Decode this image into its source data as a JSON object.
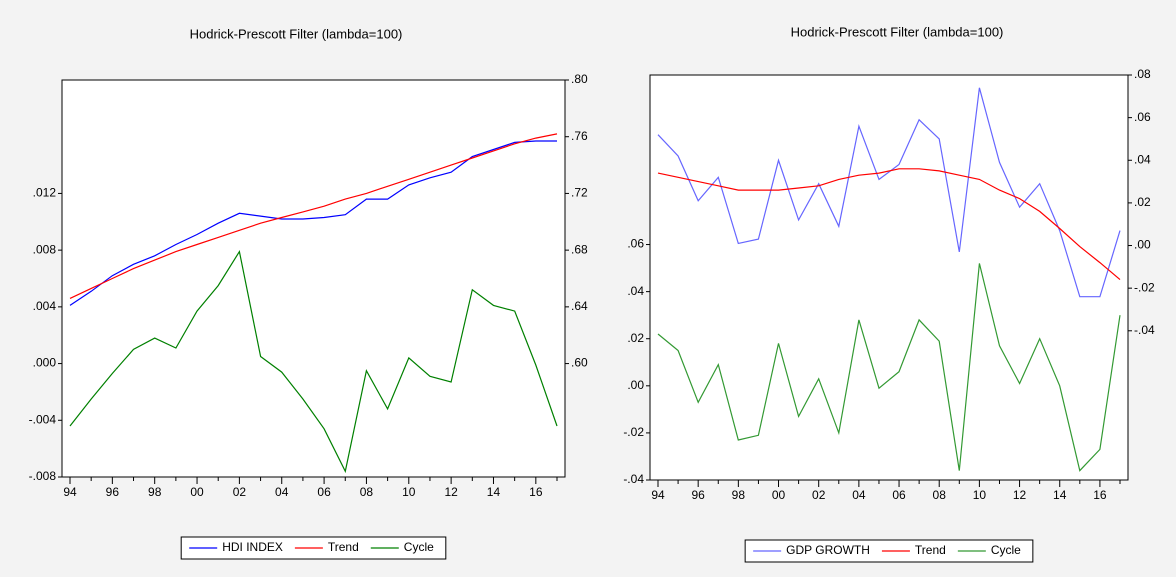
{
  "chart_data": [
    {
      "type": "line",
      "title": "Hodrick-Prescott Filter (lambda=100)",
      "categories": [
        "94",
        null,
        "96",
        null,
        "98",
        null,
        "00",
        null,
        "02",
        null,
        "04",
        null,
        "06",
        null,
        "08",
        null,
        "10",
        null,
        "12",
        null,
        "14",
        null,
        "16",
        null
      ],
      "series": [
        {
          "name": "HDI INDEX",
          "color": "#0000ff",
          "axis": "y2",
          "values": [
            0.641,
            0.651,
            0.662,
            0.67,
            0.676,
            0.684,
            0.691,
            0.699,
            0.706,
            0.704,
            0.702,
            0.702,
            0.703,
            0.705,
            0.716,
            0.716,
            0.726,
            0.731,
            0.735,
            0.746,
            0.751,
            0.756,
            0.757,
            0.757
          ]
        },
        {
          "name": "Trend",
          "color": "#ff0000",
          "axis": "y2",
          "values": [
            0.646,
            0.653,
            0.66,
            0.667,
            0.673,
            0.679,
            0.684,
            0.689,
            0.694,
            0.699,
            0.703,
            0.707,
            0.711,
            0.716,
            0.72,
            0.725,
            0.73,
            0.735,
            0.74,
            0.745,
            0.75,
            0.755,
            0.759,
            0.762
          ]
        },
        {
          "name": "Cycle",
          "color": "#008000",
          "values": [
            -0.0044,
            -0.0025,
            -0.0007,
            0.001,
            0.0018,
            0.0011,
            0.0037,
            0.0055,
            0.0079,
            0.0005,
            -0.0006,
            -0.0025,
            -0.0046,
            -0.0076,
            -0.0005,
            -0.0032,
            0.0004,
            -0.0009,
            -0.0013,
            0.0052,
            0.0041,
            0.0037,
            -0.0001,
            -0.0044
          ]
        }
      ],
      "ylim": [
        -0.008,
        0.02
      ],
      "yticks": [
        {
          "value": -0.008,
          "label": "-.008"
        },
        {
          "value": -0.004,
          "label": "-.004"
        },
        {
          "value": 0,
          "label": ".000"
        },
        {
          "value": 0.004,
          "label": ".004"
        },
        {
          "value": 0.008,
          "label": ".008"
        },
        {
          "value": 0.012,
          "label": ".012"
        }
      ],
      "y2lim": [
        0.52,
        0.8
      ],
      "y2ticks": [
        {
          "value": 0.6,
          "label": ".60"
        },
        {
          "value": 0.64,
          "label": ".64"
        },
        {
          "value": 0.68,
          "label": ".68"
        },
        {
          "value": 0.72,
          "label": ".72"
        },
        {
          "value": 0.76,
          "label": ".76"
        },
        {
          "value": 0.8,
          "label": ".80"
        }
      ],
      "legend": "bottom",
      "grid": false
    },
    {
      "type": "line",
      "title": "Hodrick-Prescott Filter (lambda=100)",
      "categories": [
        "94",
        null,
        "96",
        null,
        "98",
        null,
        "00",
        null,
        "02",
        null,
        "04",
        null,
        "06",
        null,
        "08",
        null,
        "10",
        null,
        "12",
        null,
        "14",
        null,
        "16",
        null
      ],
      "series": [
        {
          "name": "GDP GROWTH",
          "color": "#6666ff",
          "axis": "y2",
          "values": [
            0.052,
            0.042,
            0.021,
            0.032,
            0.001,
            0.003,
            0.04,
            0.012,
            0.029,
            0.009,
            0.056,
            0.031,
            0.038,
            0.059,
            0.05,
            -0.003,
            0.074,
            0.039,
            0.018,
            0.029,
            0.007,
            -0.024,
            -0.024,
            0.007
          ]
        },
        {
          "name": "Trend",
          "color": "#ff0000",
          "axis": "y2",
          "values": [
            0.034,
            0.032,
            0.03,
            0.028,
            0.026,
            0.026,
            0.026,
            0.027,
            0.028,
            0.031,
            0.033,
            0.034,
            0.036,
            0.036,
            0.035,
            0.033,
            0.031,
            0.026,
            0.022,
            0.016,
            0.008,
            -0.0005,
            -0.008,
            -0.016
          ]
        },
        {
          "name": "Cycle",
          "color": "#339933",
          "values": [
            0.022,
            0.015,
            -0.007,
            0.009,
            -0.023,
            -0.021,
            0.018,
            -0.013,
            0.003,
            -0.02,
            0.028,
            -0.001,
            0.006,
            0.028,
            0.019,
            -0.036,
            0.052,
            0.017,
            0.001,
            0.02,
            0.0,
            -0.036,
            -0.027,
            0.03
          ]
        }
      ],
      "ylim": [
        -0.04,
        0.132
      ],
      "yticks": [
        {
          "value": -0.04,
          "label": "-.04"
        },
        {
          "value": -0.02,
          "label": "-.02"
        },
        {
          "value": 0,
          "label": ".00"
        },
        {
          "value": 0.02,
          "label": ".02"
        },
        {
          "value": 0.04,
          "label": ".04"
        },
        {
          "value": 0.06,
          "label": ".06"
        }
      ],
      "y2lim": [
        -0.11,
        0.08
      ],
      "y2ticks": [
        {
          "value": -0.04,
          "label": "-.04"
        },
        {
          "value": -0.02,
          "label": "-.02"
        },
        {
          "value": 0,
          "label": ".00"
        },
        {
          "value": 0.02,
          "label": ".02"
        },
        {
          "value": 0.04,
          "label": ".04"
        },
        {
          "value": 0.06,
          "label": ".06"
        },
        {
          "value": 0.08,
          "label": ".08"
        }
      ],
      "legend": "bottom",
      "grid": false
    }
  ]
}
